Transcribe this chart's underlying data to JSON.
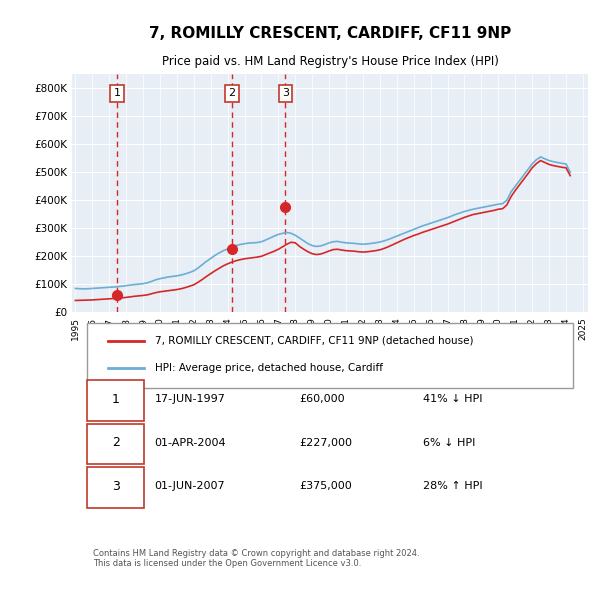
{
  "title": "7, ROMILLY CRESCENT, CARDIFF, CF11 9NP",
  "subtitle": "Price paid vs. HM Land Registry's House Price Index (HPI)",
  "background_color": "#f0f4f8",
  "plot_bg_color": "#e8eef5",
  "ylabel_color": "#333333",
  "ylim": [
    0,
    850000
  ],
  "yticks": [
    0,
    100000,
    200000,
    300000,
    400000,
    500000,
    600000,
    700000,
    800000
  ],
  "ytick_labels": [
    "£0",
    "£100K",
    "£200K",
    "£300K",
    "£400K",
    "£500K",
    "£600K",
    "£700K",
    "£800K"
  ],
  "sale_dates": [
    "1997-06-17",
    "2004-04-01",
    "2007-06-01"
  ],
  "sale_prices": [
    60000,
    227000,
    375000
  ],
  "sale_labels": [
    "1",
    "2",
    "3"
  ],
  "hpi_line_color": "#6baed6",
  "price_line_color": "#d62728",
  "dashed_line_color": "#d62728",
  "sale_marker_color": "#d62728",
  "legend_entries": [
    "7, ROMILLY CRESCENT, CARDIFF, CF11 9NP (detached house)",
    "HPI: Average price, detached house, Cardiff"
  ],
  "table_entries": [
    {
      "num": "1",
      "date": "17-JUN-1997",
      "price": "£60,000",
      "hpi": "41% ↓ HPI"
    },
    {
      "num": "2",
      "date": "01-APR-2004",
      "price": "£227,000",
      "hpi": "6% ↓ HPI"
    },
    {
      "num": "3",
      "date": "01-JUN-2007",
      "price": "£375,000",
      "hpi": "28% ↑ HPI"
    }
  ],
  "footnote": "Contains HM Land Registry data © Crown copyright and database right 2024.\nThis data is licensed under the Open Government Licence v3.0.",
  "hpi_data": {
    "dates": [
      1995.0,
      1995.25,
      1995.5,
      1995.75,
      1996.0,
      1996.25,
      1996.5,
      1996.75,
      1997.0,
      1997.25,
      1997.5,
      1997.75,
      1998.0,
      1998.25,
      1998.5,
      1998.75,
      1999.0,
      1999.25,
      1999.5,
      1999.75,
      2000.0,
      2000.25,
      2000.5,
      2000.75,
      2001.0,
      2001.25,
      2001.5,
      2001.75,
      2002.0,
      2002.25,
      2002.5,
      2002.75,
      2003.0,
      2003.25,
      2003.5,
      2003.75,
      2004.0,
      2004.25,
      2004.5,
      2004.75,
      2005.0,
      2005.25,
      2005.5,
      2005.75,
      2006.0,
      2006.25,
      2006.5,
      2006.75,
      2007.0,
      2007.25,
      2007.5,
      2007.75,
      2008.0,
      2008.25,
      2008.5,
      2008.75,
      2009.0,
      2009.25,
      2009.5,
      2009.75,
      2010.0,
      2010.25,
      2010.5,
      2010.75,
      2011.0,
      2011.25,
      2011.5,
      2011.75,
      2012.0,
      2012.25,
      2012.5,
      2012.75,
      2013.0,
      2013.25,
      2013.5,
      2013.75,
      2014.0,
      2014.25,
      2014.5,
      2014.75,
      2015.0,
      2015.25,
      2015.5,
      2015.75,
      2016.0,
      2016.25,
      2016.5,
      2016.75,
      2017.0,
      2017.25,
      2017.5,
      2017.75,
      2018.0,
      2018.25,
      2018.5,
      2018.75,
      2019.0,
      2019.25,
      2019.5,
      2019.75,
      2020.0,
      2020.25,
      2020.5,
      2020.75,
      2021.0,
      2021.25,
      2021.5,
      2021.75,
      2022.0,
      2022.25,
      2022.5,
      2022.75,
      2023.0,
      2023.25,
      2023.5,
      2023.75,
      2024.0,
      2024.25
    ],
    "values": [
      85000,
      84000,
      83500,
      84000,
      85000,
      86000,
      87000,
      88000,
      89000,
      90000,
      91500,
      93000,
      95000,
      97000,
      99000,
      100500,
      102000,
      105000,
      110000,
      116000,
      120000,
      123000,
      126000,
      128000,
      130000,
      133000,
      137000,
      142000,
      148000,
      158000,
      170000,
      182000,
      192000,
      203000,
      212000,
      220000,
      226000,
      232000,
      238000,
      242000,
      245000,
      247000,
      248000,
      249000,
      252000,
      258000,
      265000,
      272000,
      278000,
      282000,
      285000,
      282000,
      275000,
      265000,
      255000,
      245000,
      238000,
      235000,
      237000,
      242000,
      248000,
      252000,
      253000,
      250000,
      248000,
      247000,
      246000,
      244000,
      243000,
      244000,
      246000,
      248000,
      251000,
      255000,
      260000,
      266000,
      272000,
      278000,
      284000,
      290000,
      296000,
      302000,
      308000,
      313000,
      318000,
      323000,
      328000,
      333000,
      338000,
      344000,
      350000,
      355000,
      360000,
      364000,
      368000,
      371000,
      374000,
      377000,
      380000,
      383000,
      386000,
      388000,
      400000,
      430000,
      450000,
      470000,
      490000,
      510000,
      530000,
      545000,
      555000,
      548000,
      542000,
      538000,
      535000,
      532000,
      530000,
      500000
    ]
  },
  "price_data": {
    "dates": [
      1995.0,
      1995.25,
      1995.5,
      1995.75,
      1996.0,
      1996.25,
      1996.5,
      1996.75,
      1997.0,
      1997.25,
      1997.5,
      1997.75,
      1998.0,
      1998.25,
      1998.5,
      1998.75,
      1999.0,
      1999.25,
      1999.5,
      1999.75,
      2000.0,
      2000.25,
      2000.5,
      2000.75,
      2001.0,
      2001.25,
      2001.5,
      2001.75,
      2002.0,
      2002.25,
      2002.5,
      2002.75,
      2003.0,
      2003.25,
      2003.5,
      2003.75,
      2004.0,
      2004.25,
      2004.5,
      2004.75,
      2005.0,
      2005.25,
      2005.5,
      2005.75,
      2006.0,
      2006.25,
      2006.5,
      2006.75,
      2007.0,
      2007.25,
      2007.5,
      2007.75,
      2008.0,
      2008.25,
      2008.5,
      2008.75,
      2009.0,
      2009.25,
      2009.5,
      2009.75,
      2010.0,
      2010.25,
      2010.5,
      2010.75,
      2011.0,
      2011.25,
      2011.5,
      2011.75,
      2012.0,
      2012.25,
      2012.5,
      2012.75,
      2013.0,
      2013.25,
      2013.5,
      2013.75,
      2014.0,
      2014.25,
      2014.5,
      2014.75,
      2015.0,
      2015.25,
      2015.5,
      2015.75,
      2016.0,
      2016.25,
      2016.5,
      2016.75,
      2017.0,
      2017.25,
      2017.5,
      2017.75,
      2018.0,
      2018.25,
      2018.5,
      2018.75,
      2019.0,
      2019.25,
      2019.5,
      2019.75,
      2020.0,
      2020.25,
      2020.5,
      2020.75,
      2021.0,
      2021.25,
      2021.5,
      2021.75,
      2022.0,
      2022.25,
      2022.5,
      2022.75,
      2023.0,
      2023.25,
      2023.5,
      2023.75,
      2024.0,
      2024.25
    ],
    "values": [
      42000,
      42500,
      43000,
      43500,
      44000,
      45000,
      46000,
      47000,
      48000,
      49000,
      50000,
      51500,
      53000,
      55000,
      57000,
      58500,
      60000,
      62000,
      66000,
      70000,
      73000,
      75000,
      77000,
      79000,
      81000,
      84000,
      88000,
      93000,
      98000,
      107000,
      117000,
      128000,
      138000,
      148000,
      157000,
      166000,
      173000,
      179000,
      184000,
      188000,
      191000,
      193000,
      195000,
      197000,
      200000,
      206000,
      212000,
      218000,
      225000,
      234000,
      243000,
      250000,
      248000,
      235000,
      225000,
      216000,
      209000,
      206000,
      208000,
      213000,
      219000,
      224000,
      225000,
      222000,
      220000,
      219000,
      218000,
      216000,
      215000,
      216000,
      218000,
      220000,
      223000,
      228000,
      234000,
      241000,
      248000,
      255000,
      262000,
      268000,
      274000,
      279000,
      285000,
      290000,
      295000,
      300000,
      305000,
      310000,
      315000,
      321000,
      327000,
      333000,
      339000,
      344000,
      349000,
      352000,
      355000,
      358000,
      361000,
      364000,
      368000,
      370000,
      383000,
      413000,
      435000,
      455000,
      475000,
      495000,
      516000,
      531000,
      542000,
      535000,
      528000,
      524000,
      521000,
      518000,
      516000,
      488000
    ]
  },
  "xlim": [
    1994.8,
    2025.3
  ],
  "xtick_years": [
    1995,
    1996,
    1997,
    1998,
    1999,
    2000,
    2001,
    2002,
    2003,
    2004,
    2005,
    2006,
    2007,
    2008,
    2009,
    2010,
    2011,
    2012,
    2013,
    2014,
    2015,
    2016,
    2017,
    2018,
    2019,
    2020,
    2021,
    2022,
    2023,
    2024,
    2025
  ]
}
